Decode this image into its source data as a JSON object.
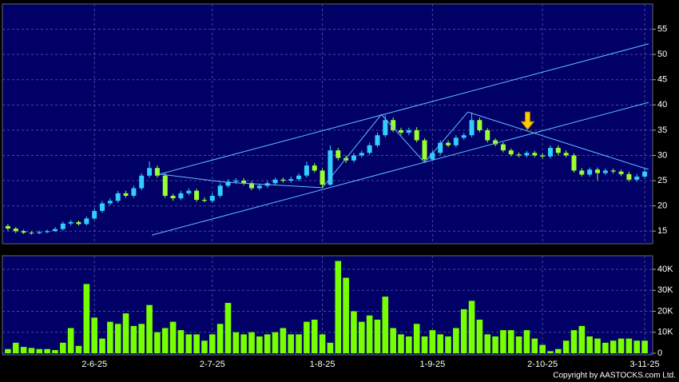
{
  "chart_data": [
    {
      "type": "candlestick",
      "open": [
        16,
        15.5,
        15,
        14.7,
        14.6,
        14.8,
        15,
        15.4,
        16.5,
        16.8,
        16.4,
        17.5,
        19,
        20.5,
        21,
        22.5,
        22,
        23.5,
        26,
        27.5,
        26,
        22,
        21.5,
        22.5,
        23,
        21.2,
        21,
        22,
        24,
        24.8,
        25,
        24.5,
        23.5,
        24,
        24.5,
        25.2,
        25,
        25.3,
        26,
        28,
        27,
        24.2,
        31,
        29.5,
        29,
        30,
        30.5,
        32,
        34,
        37,
        35,
        34.5,
        35,
        33,
        29.2,
        30.5,
        32.5,
        32,
        33.5,
        34,
        37,
        35,
        33,
        32.2,
        31,
        30.2,
        30,
        30.5,
        30,
        29.8,
        31.5,
        30.5,
        30,
        27,
        26.2,
        27.2,
        26.5,
        27,
        26.8,
        26.3,
        25.2,
        25.8
      ],
      "high": [
        16.4,
        15.8,
        15.3,
        15,
        15.1,
        15.3,
        15.8,
        16.9,
        17.2,
        17.1,
        17.9,
        19.5,
        21,
        21.5,
        23,
        23,
        24,
        26.5,
        28.8,
        28,
        26.5,
        22.4,
        23,
        23.5,
        23.4,
        21.7,
        22.5,
        24.5,
        25.3,
        25.5,
        25.5,
        24.9,
        24.4,
        24.9,
        25.6,
        25.6,
        25.8,
        26.5,
        28.8,
        28.5,
        27.4,
        32,
        31.5,
        30,
        30.5,
        31,
        32.5,
        34.5,
        38,
        37.5,
        35.5,
        35.5,
        35.6,
        33.4,
        31,
        33,
        33,
        34,
        34.5,
        38.5,
        37.5,
        35.4,
        33.4,
        32.6,
        31.4,
        30.6,
        30.9,
        30.9,
        30.4,
        32,
        32,
        31,
        30.4,
        27.5,
        27.6,
        27.6,
        27.4,
        27.4,
        27.2,
        26.8,
        26.3,
        27.3
      ],
      "low": [
        15.1,
        14.6,
        14.4,
        14.3,
        14.4,
        14.6,
        14.9,
        15.1,
        16.1,
        16.1,
        16.1,
        17.2,
        18.6,
        20.1,
        20.6,
        21.6,
        21.6,
        23.1,
        25.6,
        25.6,
        21.6,
        21,
        21.1,
        22.1,
        20.8,
        20.7,
        20.6,
        21.6,
        23.6,
        24.4,
        24.1,
        23.1,
        23.1,
        23.6,
        24.1,
        24.6,
        24.6,
        24.9,
        25.6,
        26.6,
        23.5,
        24,
        29,
        28.5,
        28.6,
        29.6,
        30.1,
        31.6,
        33.6,
        34.6,
        34,
        34,
        32.6,
        28.8,
        28.9,
        30.1,
        31.6,
        31.6,
        33.1,
        33.6,
        34.6,
        32.6,
        31.8,
        30.6,
        29.8,
        29.6,
        29.6,
        29.6,
        29.4,
        29.4,
        30,
        29.6,
        26.6,
        25.8,
        25.8,
        25.1,
        26.1,
        26.4,
        25.9,
        24.8,
        24.8,
        25.4
      ],
      "close": [
        15.5,
        15,
        14.7,
        14.6,
        14.8,
        15,
        15.4,
        16.5,
        16.8,
        16.4,
        17.5,
        19,
        20.5,
        21,
        22.5,
        22,
        23.5,
        26,
        27.5,
        26,
        22,
        21.5,
        22.5,
        23,
        21.2,
        21,
        22,
        24,
        24.8,
        25,
        24.5,
        23.5,
        24,
        24.5,
        25.2,
        25,
        25.3,
        26,
        28,
        27,
        24.2,
        31,
        29.5,
        29,
        30,
        30.5,
        32,
        34,
        37,
        35,
        34.5,
        35,
        33,
        29.2,
        30.5,
        32.5,
        32,
        33.5,
        34,
        37,
        35,
        33,
        32.2,
        31,
        30.2,
        30,
        30.5,
        30,
        29.8,
        31.5,
        30.5,
        30,
        27,
        26.2,
        27.2,
        26.5,
        27,
        26.8,
        26.3,
        25.2,
        25.8,
        26.8
      ],
      "up_color": "#33ccff",
      "down_color": "#99ff33",
      "ylim": [
        12.5,
        60
      ],
      "yticks": [
        15,
        20,
        25,
        30,
        35,
        40,
        45,
        50,
        55
      ],
      "grid": true,
      "lines": [
        {
          "color": "#66bbff",
          "x": [
            19.3,
            81.5
          ],
          "y": [
            26.3,
            52.1
          ]
        },
        {
          "color": "#66bbff",
          "x": [
            18.3,
            81.5
          ],
          "y": [
            14.2,
            40.5
          ]
        },
        {
          "color": "#66bbff",
          "x": [
            19.3,
            27.6,
            40,
            47.5,
            53,
            58.5,
            81.5
          ],
          "y": [
            26.3,
            24.7,
            23.6,
            38.1,
            28.6,
            38.6,
            27.2
          ]
        }
      ],
      "arrow": {
        "color": "#ffcc00",
        "x": 66.1,
        "y": 34.8
      }
    },
    {
      "type": "bar",
      "categories": [
        null,
        null,
        null,
        null,
        null,
        null,
        null,
        null,
        null,
        null,
        null,
        "2-6-25",
        null,
        null,
        null,
        null,
        null,
        null,
        null,
        null,
        null,
        null,
        null,
        null,
        null,
        null,
        "2-7-25",
        null,
        null,
        null,
        null,
        null,
        null,
        null,
        null,
        null,
        null,
        null,
        null,
        null,
        "1-8-25",
        null,
        null,
        null,
        null,
        null,
        null,
        null,
        null,
        null,
        null,
        null,
        null,
        null,
        "1-9-25",
        null,
        null,
        null,
        null,
        null,
        null,
        null,
        null,
        null,
        null,
        null,
        null,
        null,
        "2-10-25",
        null,
        null,
        null,
        null,
        null,
        null,
        null,
        null,
        null,
        null,
        null,
        null,
        "3-11-25"
      ],
      "values": [
        2000,
        5000,
        3000,
        2500,
        2000,
        2000,
        1500,
        5000,
        12000,
        3500,
        33000,
        17000,
        7000,
        15000,
        14000,
        19000,
        13000,
        14000,
        23000,
        10000,
        12000,
        15000,
        11000,
        9000,
        9000,
        6000,
        9000,
        14000,
        24000,
        10000,
        9000,
        10000,
        8000,
        9000,
        10000,
        12000,
        9000,
        9000,
        15000,
        16000,
        9000,
        5000,
        44000,
        36000,
        20000,
        15000,
        18000,
        16000,
        27000,
        12000,
        9000,
        8000,
        14000,
        8000,
        11000,
        9000,
        8000,
        12000,
        21000,
        25000,
        16000,
        9000,
        8000,
        11000,
        11000,
        8000,
        11000,
        7000,
        4000,
        1000,
        2000,
        6000,
        11000,
        13000,
        8000,
        7000,
        5000,
        6000,
        7000,
        7000,
        6000,
        6000
      ],
      "color": "#77ff00",
      "ylim": [
        0,
        46500
      ],
      "yticks": [
        0,
        {
          "value": 10000,
          "label": "10K"
        },
        {
          "value": 20000,
          "label": "20K"
        },
        {
          "value": 30000,
          "label": "30K"
        },
        {
          "value": 40000,
          "label": "40K"
        }
      ],
      "grid": true
    }
  ],
  "copyright": "Copyright by AASTOCKS.com Ltd."
}
